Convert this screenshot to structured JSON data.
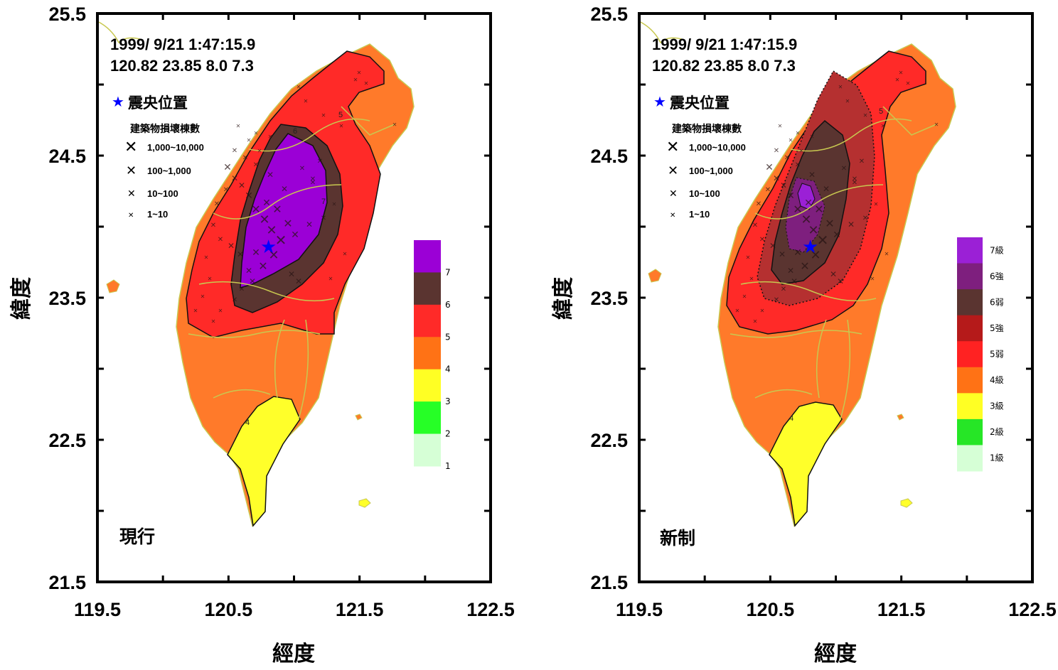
{
  "event": {
    "line1": "1999/ 9/21  1:47:15.9",
    "line2": "120.82 23.85 8.0 7.3",
    "epicenter_lon": 120.82,
    "epicenter_lat": 23.85
  },
  "axes": {
    "xlabel": "經度",
    "ylabel": "緯度",
    "x_ticks": [
      "119.5",
      "120.5",
      "121.5",
      "122.5"
    ],
    "y_ticks": [
      "25.5",
      "24.5",
      "23.5",
      "22.5",
      "21.5"
    ],
    "xlim": [
      119.5,
      122.5
    ],
    "ylim": [
      21.5,
      25.5
    ]
  },
  "legend": {
    "epicenter_label": "震央位置",
    "damage_title": "建築物損壞棟數",
    "damage_classes": [
      "1,000~10,000",
      "100~1,000",
      "10~100",
      "1~10"
    ]
  },
  "panels": [
    {
      "label": "現行",
      "scale_labels": [
        "7",
        "6",
        "5",
        "4",
        "3",
        "2",
        "1"
      ],
      "scale_colors": [
        "#9b00d6",
        "#5a3430",
        "#ff2a28",
        "#ff7215",
        "#ffff24",
        "#26ff26",
        "#d6ffd6"
      ]
    },
    {
      "label": "新制",
      "scale_labels": [
        "7級",
        "6強",
        "6弱",
        "5強",
        "5弱",
        "4級",
        "3級",
        "2級",
        "1級"
      ],
      "scale_colors": [
        "#9b20d6",
        "#7e1f7e",
        "#5a3430",
        "#b51a1a",
        "#ff2222",
        "#ff7215",
        "#ffff24",
        "#26e626",
        "#d6ffd6"
      ]
    }
  ],
  "colors": {
    "epicenter_star": "#0000ff",
    "county_lines": "#c8c850",
    "contour": "#111111"
  },
  "contour_labels": [
    "4",
    "5",
    "6",
    "7"
  ]
}
